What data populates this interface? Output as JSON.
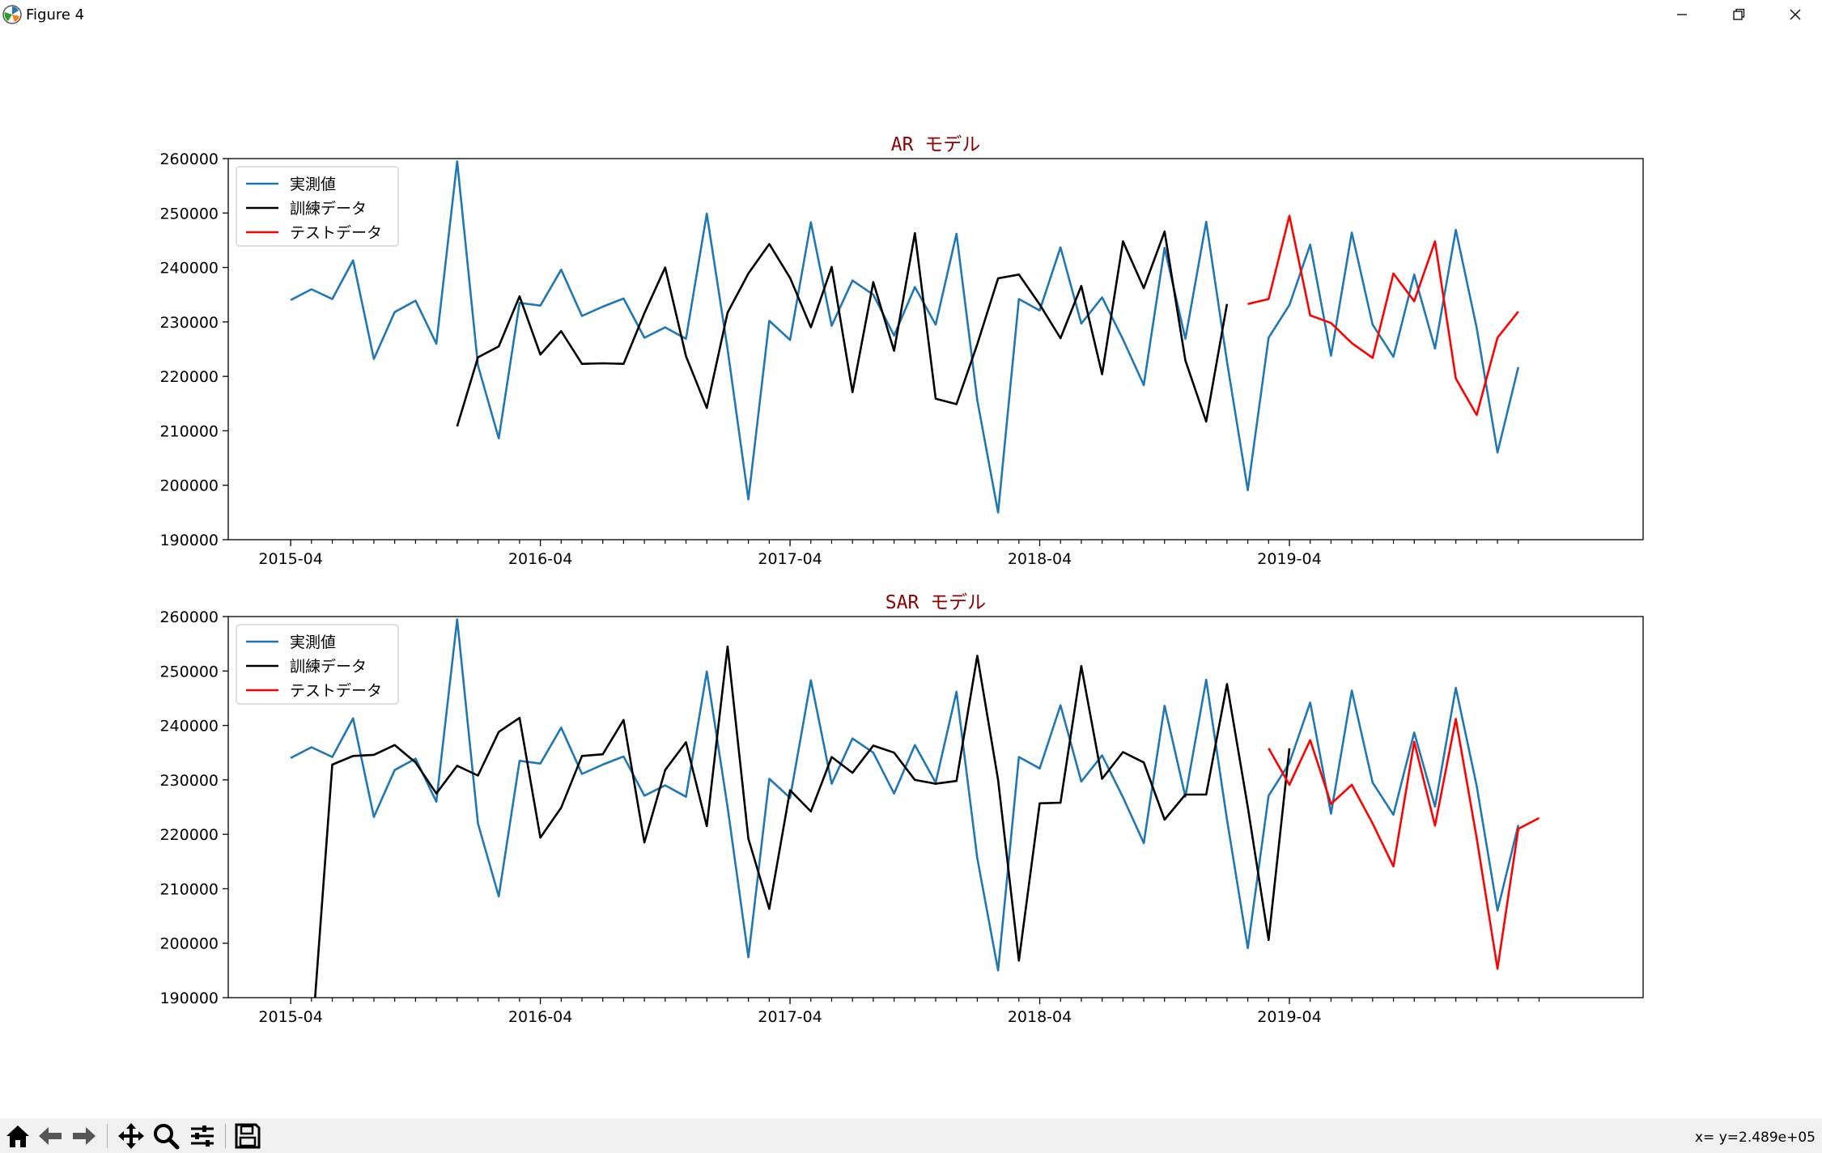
{
  "window": {
    "title": "Figure 4",
    "icon": "matplotlib-icon",
    "controls": [
      "minimize-icon",
      "maximize-icon",
      "close-icon"
    ]
  },
  "toolbar": {
    "tools": [
      "home-icon",
      "back-icon",
      "forward-icon",
      "pan-icon",
      "zoom-icon",
      "configure-subplots-icon",
      "save-icon"
    ],
    "coords": "x= y=2.489e+05"
  },
  "colors": {
    "actual": "#1f77b4",
    "train": "#000000",
    "test": "#ff0000",
    "title": "#8b0000"
  },
  "chart_data": [
    {
      "type": "line",
      "title": "AR モデル",
      "xlabel": "",
      "ylabel": "",
      "x_start": "2015-04",
      "x_ticks": [
        "2015-04",
        "2016-04",
        "2017-04",
        "2018-04",
        "2019-04"
      ],
      "xlim": [
        "2015-01",
        "2020-09"
      ],
      "ylim": [
        190000,
        260000
      ],
      "y_ticks": [
        "190000",
        "200000",
        "210000",
        "220000",
        "230000",
        "240000",
        "250000",
        "260000"
      ],
      "legend_position": "upper left",
      "series": [
        {
          "name": "実測値",
          "start": "2015-04",
          "values": [
            234000,
            236000,
            234200,
            241300,
            223200,
            231800,
            233900,
            226000,
            259500,
            222000,
            208600,
            233500,
            233000,
            239600,
            231100,
            232800,
            234300,
            227100,
            229000,
            226900,
            249900,
            225000,
            197400,
            230200,
            226700,
            248300,
            229300,
            237600,
            235000,
            227500,
            236400,
            229500,
            246200,
            215600,
            195000,
            234200,
            232100,
            243700,
            229700,
            234500,
            226800,
            218400,
            243600,
            226900,
            248400,
            222700,
            199100,
            227100,
            233100,
            244200,
            223800,
            246400,
            229500,
            223600,
            238700,
            225100,
            246900,
            228900,
            206000,
            221700
          ]
        },
        {
          "name": "訓練データ",
          "start": "2015-12",
          "values": [
            210800,
            223500,
            225500,
            234700,
            224000,
            228300,
            222300,
            222400,
            222300,
            231600,
            240000,
            223700,
            214200,
            231700,
            238900,
            244300,
            238100,
            229000,
            240100,
            217100,
            237300,
            224700,
            246300,
            215900,
            214900,
            225900,
            238000,
            238700,
            233200,
            227000,
            236600,
            220400,
            244800,
            236200,
            246600,
            222900,
            211700,
            233300
          ]
        },
        {
          "name": "テストデータ",
          "start": "2019-02",
          "values": [
            233300,
            234200,
            249500,
            231200,
            229800,
            226100,
            223400,
            238900,
            233800,
            244800,
            219600,
            212900,
            227100,
            231900
          ]
        }
      ]
    },
    {
      "type": "line",
      "title": "SAR モデル",
      "xlabel": "",
      "ylabel": "",
      "x_start": "2015-04",
      "x_ticks": [
        "2015-04",
        "2016-04",
        "2017-04",
        "2018-04",
        "2019-04"
      ],
      "xlim": [
        "2015-01",
        "2020-09"
      ],
      "ylim": [
        190000,
        260000
      ],
      "y_ticks": [
        "190000",
        "200000",
        "210000",
        "220000",
        "230000",
        "240000",
        "250000",
        "260000"
      ],
      "legend_position": "upper left",
      "series": [
        {
          "name": "実測値",
          "start": "2015-04",
          "values": [
            234000,
            236000,
            234200,
            241300,
            223200,
            231800,
            233900,
            226000,
            259500,
            222000,
            208600,
            233500,
            233000,
            239600,
            231100,
            232800,
            234300,
            227100,
            229000,
            226900,
            249900,
            225000,
            197400,
            230200,
            226700,
            248300,
            229300,
            237600,
            235000,
            227500,
            236400,
            229500,
            246200,
            215600,
            195000,
            234200,
            232100,
            243700,
            229700,
            234500,
            226800,
            218400,
            243600,
            226900,
            248400,
            222700,
            199100,
            227100,
            233100,
            244200,
            223800,
            246400,
            229500,
            223600,
            238700,
            225100,
            246900,
            228900,
            206000,
            221700
          ]
        },
        {
          "name": "訓練データ",
          "start": "2015-05",
          "values": [
            181000,
            232800,
            234400,
            234600,
            236400,
            233200,
            227500,
            232600,
            230800,
            238800,
            241400,
            219400,
            224900,
            234400,
            234700,
            241000,
            218500,
            231800,
            236900,
            221500,
            254500,
            219200,
            206300,
            228100,
            224200,
            234200,
            231300,
            236300,
            235000,
            230000,
            229300,
            229800,
            252800,
            230000,
            196800,
            225700,
            225800,
            250900,
            230200,
            235100,
            233200,
            222700,
            227300,
            227300,
            247600,
            225000,
            200600,
            235800
          ]
        },
        {
          "name": "テストデータ",
          "start": "2019-03",
          "values": [
            235800,
            229100,
            237300,
            225600,
            229100,
            222000,
            214100,
            237000,
            221600,
            241200,
            219300,
            195300,
            221000,
            223000
          ]
        }
      ]
    }
  ]
}
